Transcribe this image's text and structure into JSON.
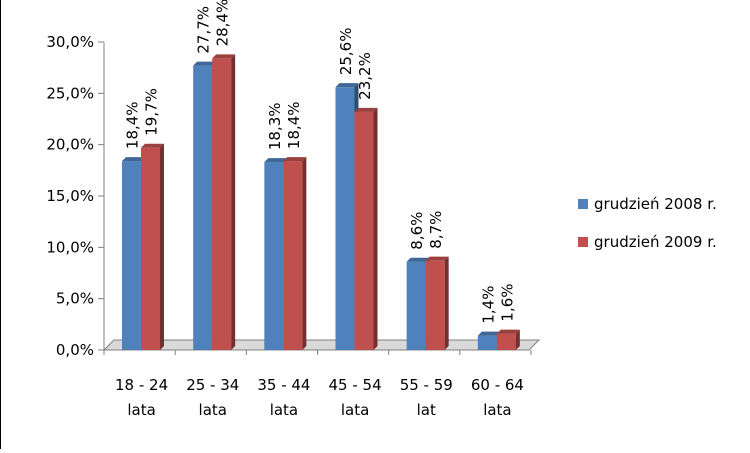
{
  "chart_data": {
    "type": "bar",
    "categories": [
      "18 - 24 lata",
      "25 - 34 lata",
      "35 - 44 lata",
      "45 - 54 lata",
      "55 - 59 lat",
      "60 - 64 lata"
    ],
    "category_lines": [
      [
        "18 - 24",
        "lata"
      ],
      [
        "25 - 34",
        "lata"
      ],
      [
        "35 - 44",
        "lata"
      ],
      [
        "45 - 54",
        "lata"
      ],
      [
        "55 - 59",
        "lat"
      ],
      [
        "60 - 64",
        "lata"
      ]
    ],
    "series": [
      {
        "name": "grudzień 2008 r.",
        "values": [
          18.4,
          27.7,
          18.3,
          25.6,
          8.6,
          1.4
        ],
        "labels": [
          "18,4%",
          "27,7%",
          "18,3%",
          "25,6%",
          "8,6%",
          "1,4%"
        ],
        "color": "#4F81BD"
      },
      {
        "name": "grudzień 2009 r.",
        "values": [
          19.7,
          28.4,
          18.4,
          23.2,
          8.7,
          1.6
        ],
        "labels": [
          "19,7%",
          "28,4%",
          "18,4%",
          "23,2%",
          "8,7%",
          "1,6%"
        ],
        "color": "#C0504D"
      }
    ],
    "yticks": [
      "0,0%",
      "5,0%",
      "10,0%",
      "15,0%",
      "20,0%",
      "25,0%",
      "30,0%"
    ],
    "ylim": [
      0,
      30
    ],
    "title": "",
    "xlabel": "",
    "ylabel": "",
    "grid": false,
    "legend_position": "right"
  }
}
